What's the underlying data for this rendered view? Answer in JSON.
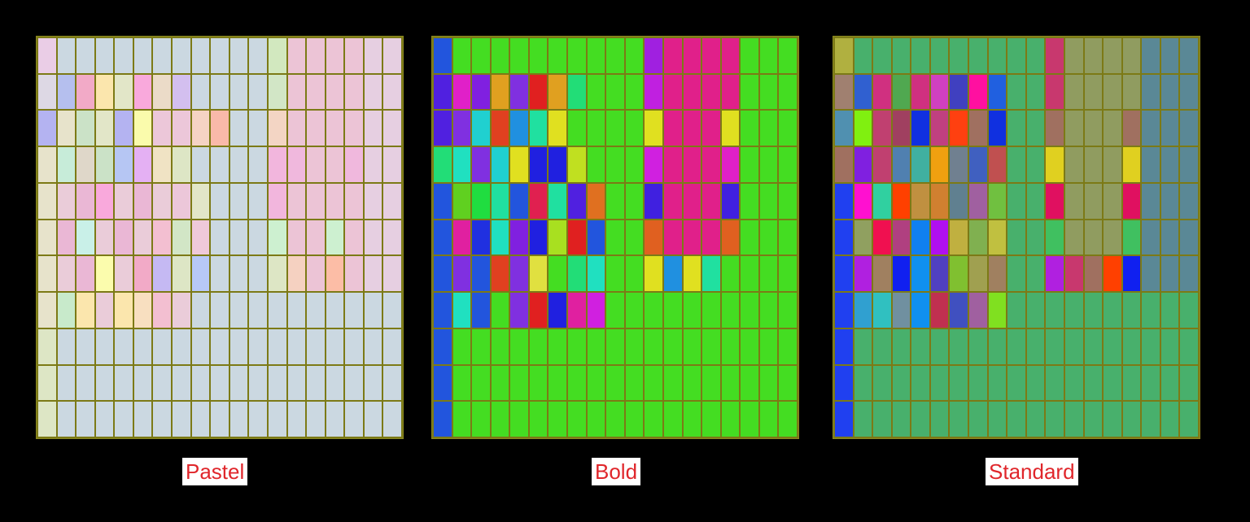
{
  "panels": [
    {
      "id": "pastel",
      "caption": "Pastel",
      "palette": {
        "B": "#cbd8e1",
        "P": "#ecc4d6",
        "G": "#d2e8bf",
        "L": "#e6cfe1",
        "a": "#eacde6",
        "b": "#ddd8e4",
        "c": "#b5bfee",
        "d": "#e7e3cb",
        "e": "#dde6c5",
        "f": "#f2aac7",
        "g": "#fbe6ad",
        "h": "#e2e6c8",
        "i": "#f9a9dc",
        "j": "#ebdbc8",
        "k": "#d3bfef",
        "l": "#e2e6cf",
        "m": "#d2e6c6",
        "n": "#cbe2c7",
        "o": "#b4b3f1",
        "p": "#fafbac",
        "q": "#ecc7d9",
        "r": "#f5d3c4",
        "s": "#f9b9a9",
        "t": "#f3d5c4",
        "u": "#c7ecd9",
        "v": "#dfd7c9",
        "w": "#b6c6f3",
        "x": "#e4b0f3",
        "y": "#f0e3c4",
        "z": "#f2b6dd",
        "C": "#f0b8dd",
        "D": "#eaccd9",
        "E": "#c9f0e8",
        "F": "#eab7d5",
        "H": "#fbfcad",
        "I": "#c5b9f3",
        "J": "#b7c8f6",
        "K": "#f5d1c1",
        "M": "#fcbda6",
        "N": "#c8eacb",
        "O": "#f8dfc0",
        "Q": "#f3bfd1",
        "R": "#efc9d9",
        "S": "#cdf0d0"
      },
      "rows": [
        "aBBBBBBBBBBBGPPPPLL",
        "bcfghijkBBBBmPPPPLL",
        "odnhopqqrsBBtPPPPLL",
        "duvnwxyeBBBBzCPPCLL",
        "dDFiDFDqhBBBzPPPPLL",
        "dFEDFDQmRBBBSPPSPLL",
        "dDFHDfIeJBBBeKPMPLL",
        "dNgDgOQDBBBBBBBBBBB",
        "eBBBBBBBBBBBBBBBBBB",
        "eBBBBBBBBBBBBBBBBBB",
        "eBBBBBBBBBBBBBBBBBB"
      ]
    },
    {
      "id": "bold",
      "caption": "Bold",
      "palette": {
        "G": "#44dd22",
        "P": "#e0208a",
        "B": "#2255dd",
        "V": "#a020e0",
        "a": "#e020c8",
        "b": "#a8e020",
        "c": "#e0a020",
        "d": "#8020e0",
        "e": "#c020e0",
        "f": "#e02020",
        "g": "#22dd77",
        "h": "#5020e0",
        "i": "#8030e0",
        "j": "#20d0d0",
        "k": "#e04020",
        "l": "#2090e0",
        "m": "#20e0a0",
        "n": "#e0e020",
        "o": "#e020a0",
        "p": "#2020e0",
        "q": "#b0e020",
        "r": "#60d020",
        "s": "#20dd40",
        "t": "#e07020",
        "u": "#e02050",
        "v": "#4020e0",
        "w": "#20e0c0",
        "x": "#e06020",
        "y": "#2030e0",
        "z": "#c0e020",
        "C": "#e0e040",
        "D": "#20c0e0",
        "E": "#e02080",
        "F": "#d020e0"
      },
      "rows": [
        "BGGGGGGGGGGVPPPPGGG",
        "hadcifcgGGGePPPPGGG",
        "hijklmnGGGGnPPPnGGG",
        "gwijnppzGGGFPPPaGGG",
        "BrsmBumhtGGvPPPvGGG",
        "BoywdpbfBGGxPPPxGGG",
        "BiBkiCGgwGGnlnmGGGG",
        "BwBGifpoFGGGGGGGGGG",
        "BGGGGGGGGGGGGGGGGGG",
        "BGGGGGGGGGGGGGGGGGG",
        "BGGGGGGGGGGGGGGGGGG"
      ]
    },
    {
      "id": "standard",
      "caption": "Standard",
      "palette": {
        "G": "#48b06c",
        "R": "#c8386e",
        "O": "#909c60",
        "S": "#5a8896",
        "a": "#b0b040",
        "b": "#a08070",
        "c": "#3060d0",
        "d": "#d03080",
        "e": "#50a850",
        "f": "#d040c0",
        "g": "#4040c0",
        "h": "#ff10a0",
        "i": "#2060e0",
        "j": "#5090b0",
        "k": "#80f010",
        "l": "#c04070",
        "m": "#a04060",
        "n": "#1030e0",
        "o": "#c04080",
        "p": "#ff4010",
        "q": "#a07060",
        "r": "#8020e0",
        "s": "#5080b0",
        "t": "#40b0a0",
        "u": "#f0a010",
        "v": "#708090",
        "w": "#4060c0",
        "x": "#c05050",
        "y": "#e0d020",
        "z": "#2040f0",
        "A": "#ff10d0",
        "B": "#30d0a0",
        "C": "#ff4000",
        "D": "#c09040",
        "E": "#d08030",
        "F": "#608090",
        "H": "#a060a0",
        "I": "#70c040",
        "J": "#e01060",
        "K": "#90a060",
        "L": "#f01050",
        "M": "#b04080",
        "N": "#1080f0",
        "P": "#b010f0",
        "Q": "#c0b040",
        "T": "#80b050",
        "U": "#c0c040",
        "V": "#40c060",
        "W": "#b020e0",
        "X": "#a08060",
        "Y": "#1020f0",
        "Z": "#1090f0",
        "q2": "#5040c0",
        "r2": "#80c030",
        "s2": "#a0a050",
        "t2": "#30a0d0",
        "u2": "#30c0c0",
        "v2": "#7090a0",
        "w2": "#c03050",
        "x2": "#4050c0",
        "y2": "#a060a0",
        "z2": "#80e020"
      },
      "rows": [
        [
          "a",
          "G",
          "G",
          "G",
          "G",
          "G",
          "G",
          "G",
          "G",
          "G",
          "G",
          "R",
          "O",
          "O",
          "O",
          "O",
          "S",
          "S",
          "S"
        ],
        [
          "b",
          "c",
          "d",
          "e",
          "d",
          "f",
          "g",
          "h",
          "i",
          "G",
          "G",
          "R",
          "O",
          "O",
          "O",
          "O",
          "S",
          "S",
          "S"
        ],
        [
          "j",
          "k",
          "l",
          "m",
          "n",
          "o",
          "p",
          "q",
          "n",
          "G",
          "G",
          "q",
          "O",
          "O",
          "O",
          "q",
          "S",
          "S",
          "S"
        ],
        [
          "q",
          "r",
          "l",
          "s",
          "t",
          "u",
          "v",
          "w",
          "x",
          "G",
          "G",
          "y",
          "O",
          "O",
          "O",
          "y",
          "S",
          "S",
          "S"
        ],
        [
          "z",
          "A",
          "B",
          "C",
          "D",
          "E",
          "F",
          "H",
          "I",
          "G",
          "G",
          "J",
          "O",
          "O",
          "O",
          "J",
          "S",
          "S",
          "S"
        ],
        [
          "z",
          "K",
          "L",
          "M",
          "N",
          "P",
          "Q",
          "T",
          "U",
          "G",
          "G",
          "V",
          "O",
          "O",
          "O",
          "V",
          "S",
          "S",
          "S"
        ],
        [
          "z",
          "W",
          "X",
          "Y",
          "Z",
          "q2",
          "r2",
          "s2",
          "X",
          "G",
          "G",
          "W",
          "R",
          "q",
          "C",
          "Y",
          "S",
          "S",
          "S"
        ],
        [
          "z",
          "t2",
          "u2",
          "v2",
          "Z",
          "w2",
          "x2",
          "y2",
          "z2",
          "G",
          "G",
          "G",
          "G",
          "G",
          "G",
          "G",
          "G",
          "G",
          "G"
        ],
        [
          "z",
          "G",
          "G",
          "G",
          "G",
          "G",
          "G",
          "G",
          "G",
          "G",
          "G",
          "G",
          "G",
          "G",
          "G",
          "G",
          "G",
          "G",
          "G"
        ],
        [
          "z",
          "G",
          "G",
          "G",
          "G",
          "G",
          "G",
          "G",
          "G",
          "G",
          "G",
          "G",
          "G",
          "G",
          "G",
          "G",
          "G",
          "G",
          "G"
        ],
        [
          "z",
          "G",
          "G",
          "G",
          "G",
          "G",
          "G",
          "G",
          "G",
          "G",
          "G",
          "G",
          "G",
          "G",
          "G",
          "G",
          "G",
          "G",
          "G"
        ]
      ]
    }
  ]
}
